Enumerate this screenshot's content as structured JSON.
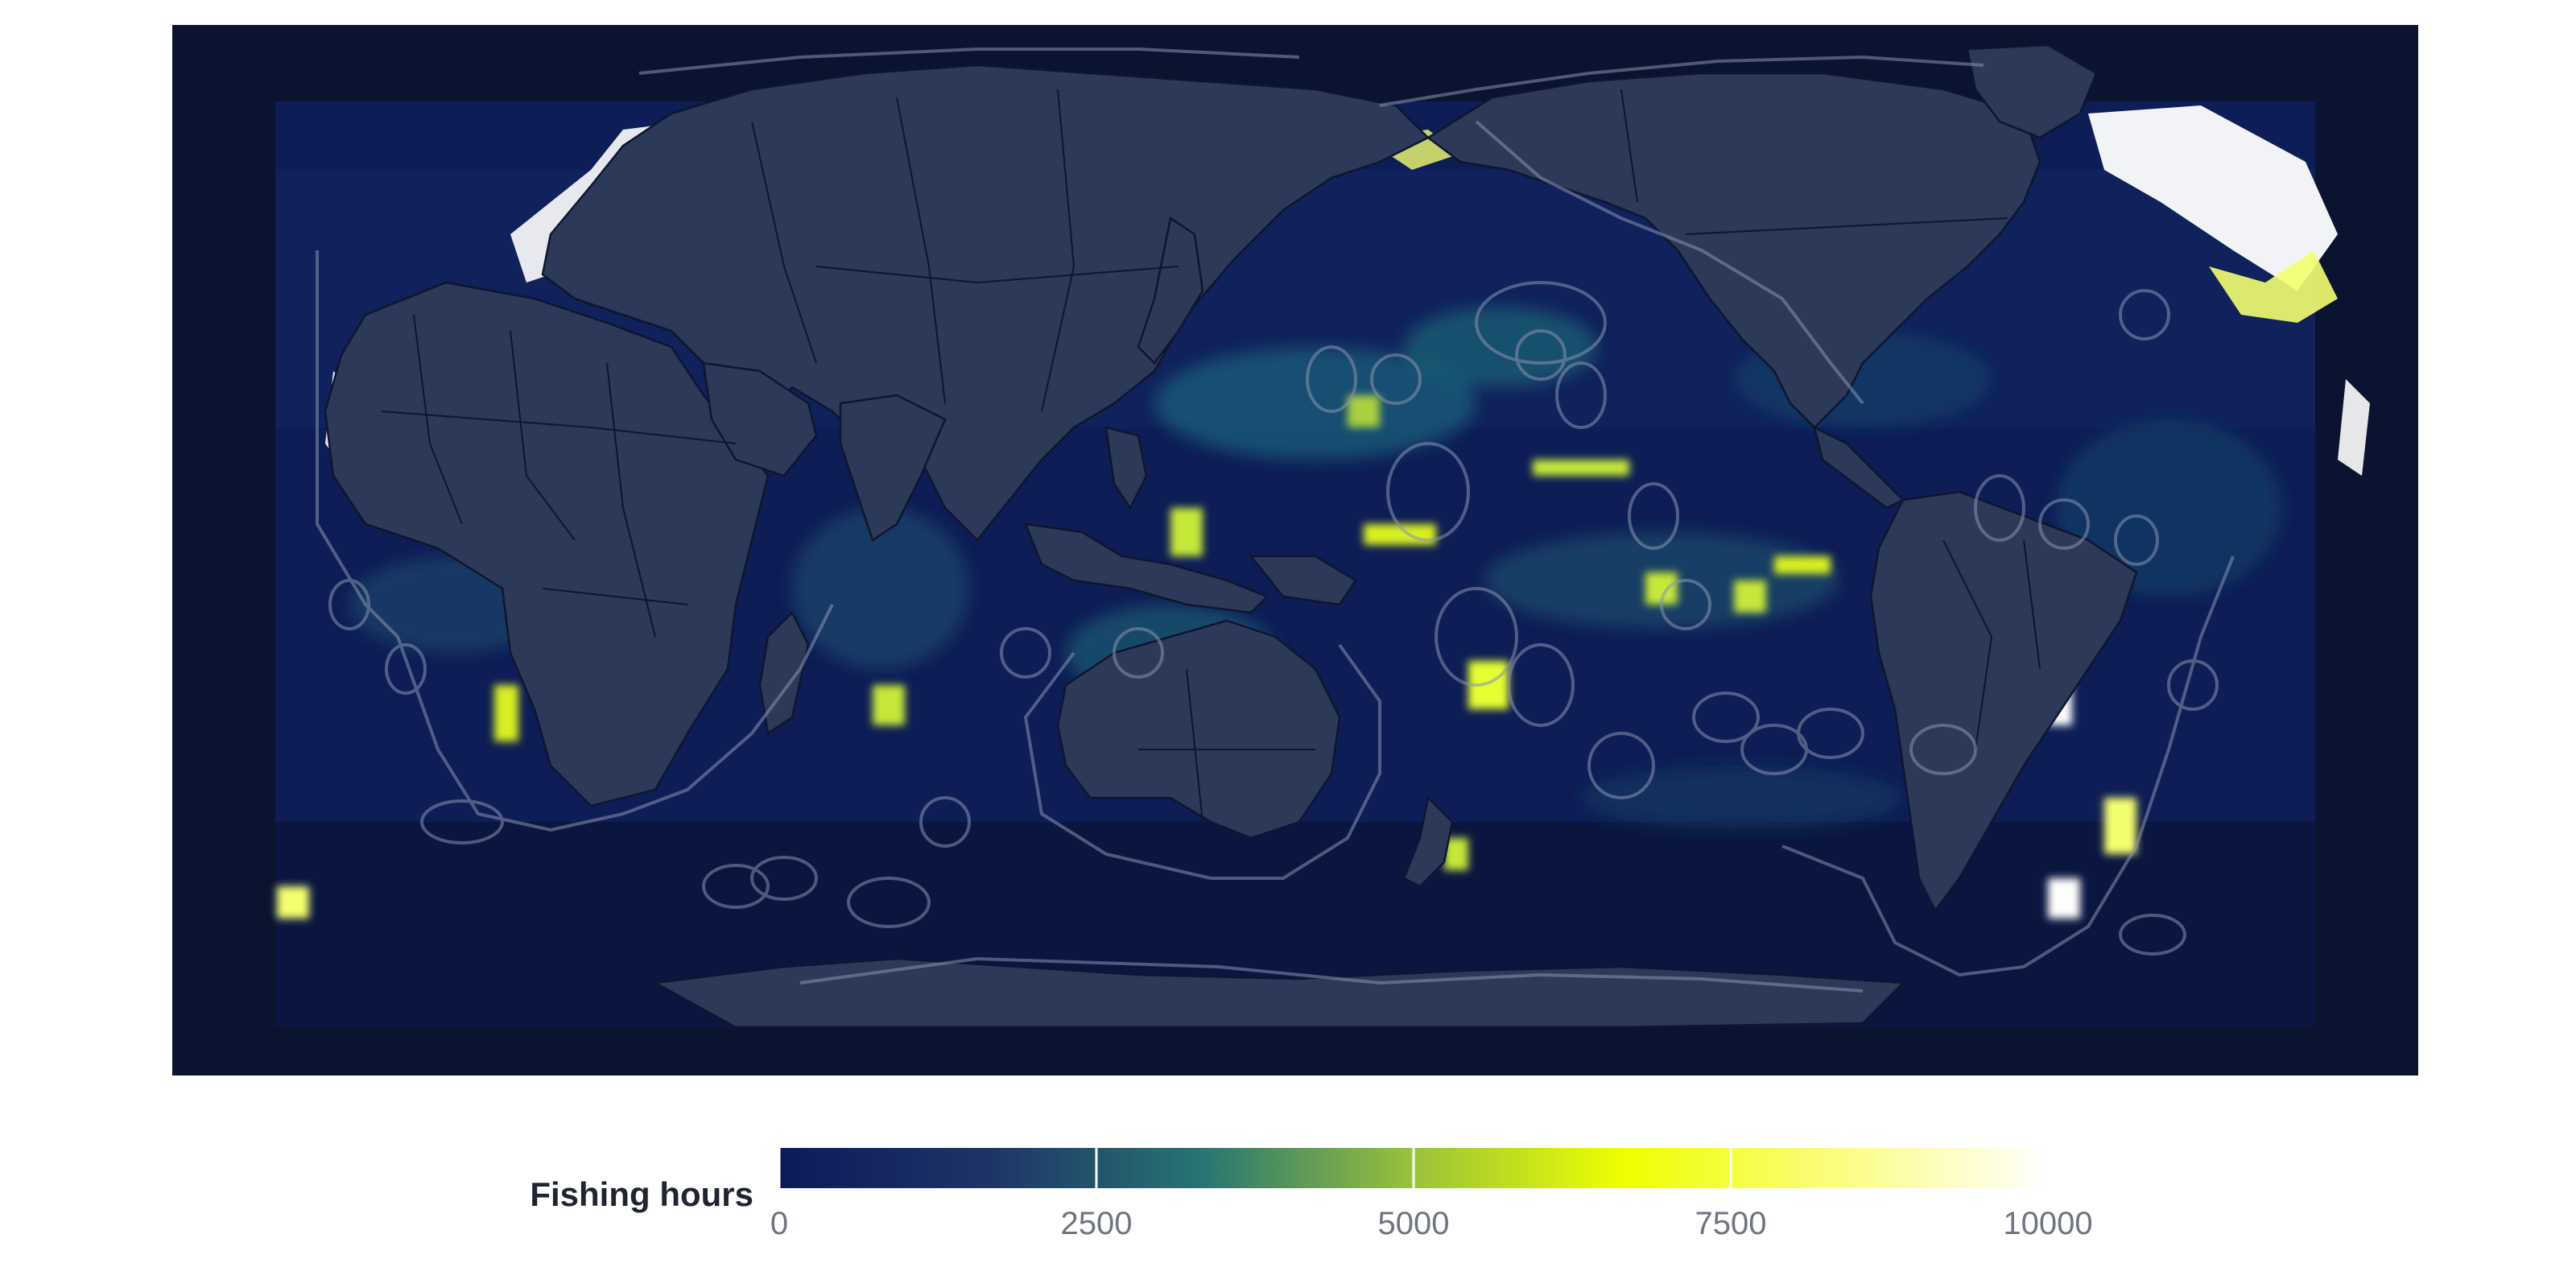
{
  "map": {
    "projection": "equirectangular, Pacific-centered",
    "colors": {
      "background": "#0a1330",
      "land": "#2c3958",
      "land_border": "#0e1530",
      "eez_outline": "#8a93b0"
    }
  },
  "legend": {
    "title": "Fishing hours",
    "min": 0,
    "max": 10000,
    "ticks": [
      "0",
      "2500",
      "5000",
      "7500",
      "10000"
    ],
    "colormap": [
      "#0d1a5a",
      "#1e3467",
      "#277472",
      "#9ac23a",
      "#eeff00",
      "#fbfd80",
      "#ffffff"
    ]
  }
}
